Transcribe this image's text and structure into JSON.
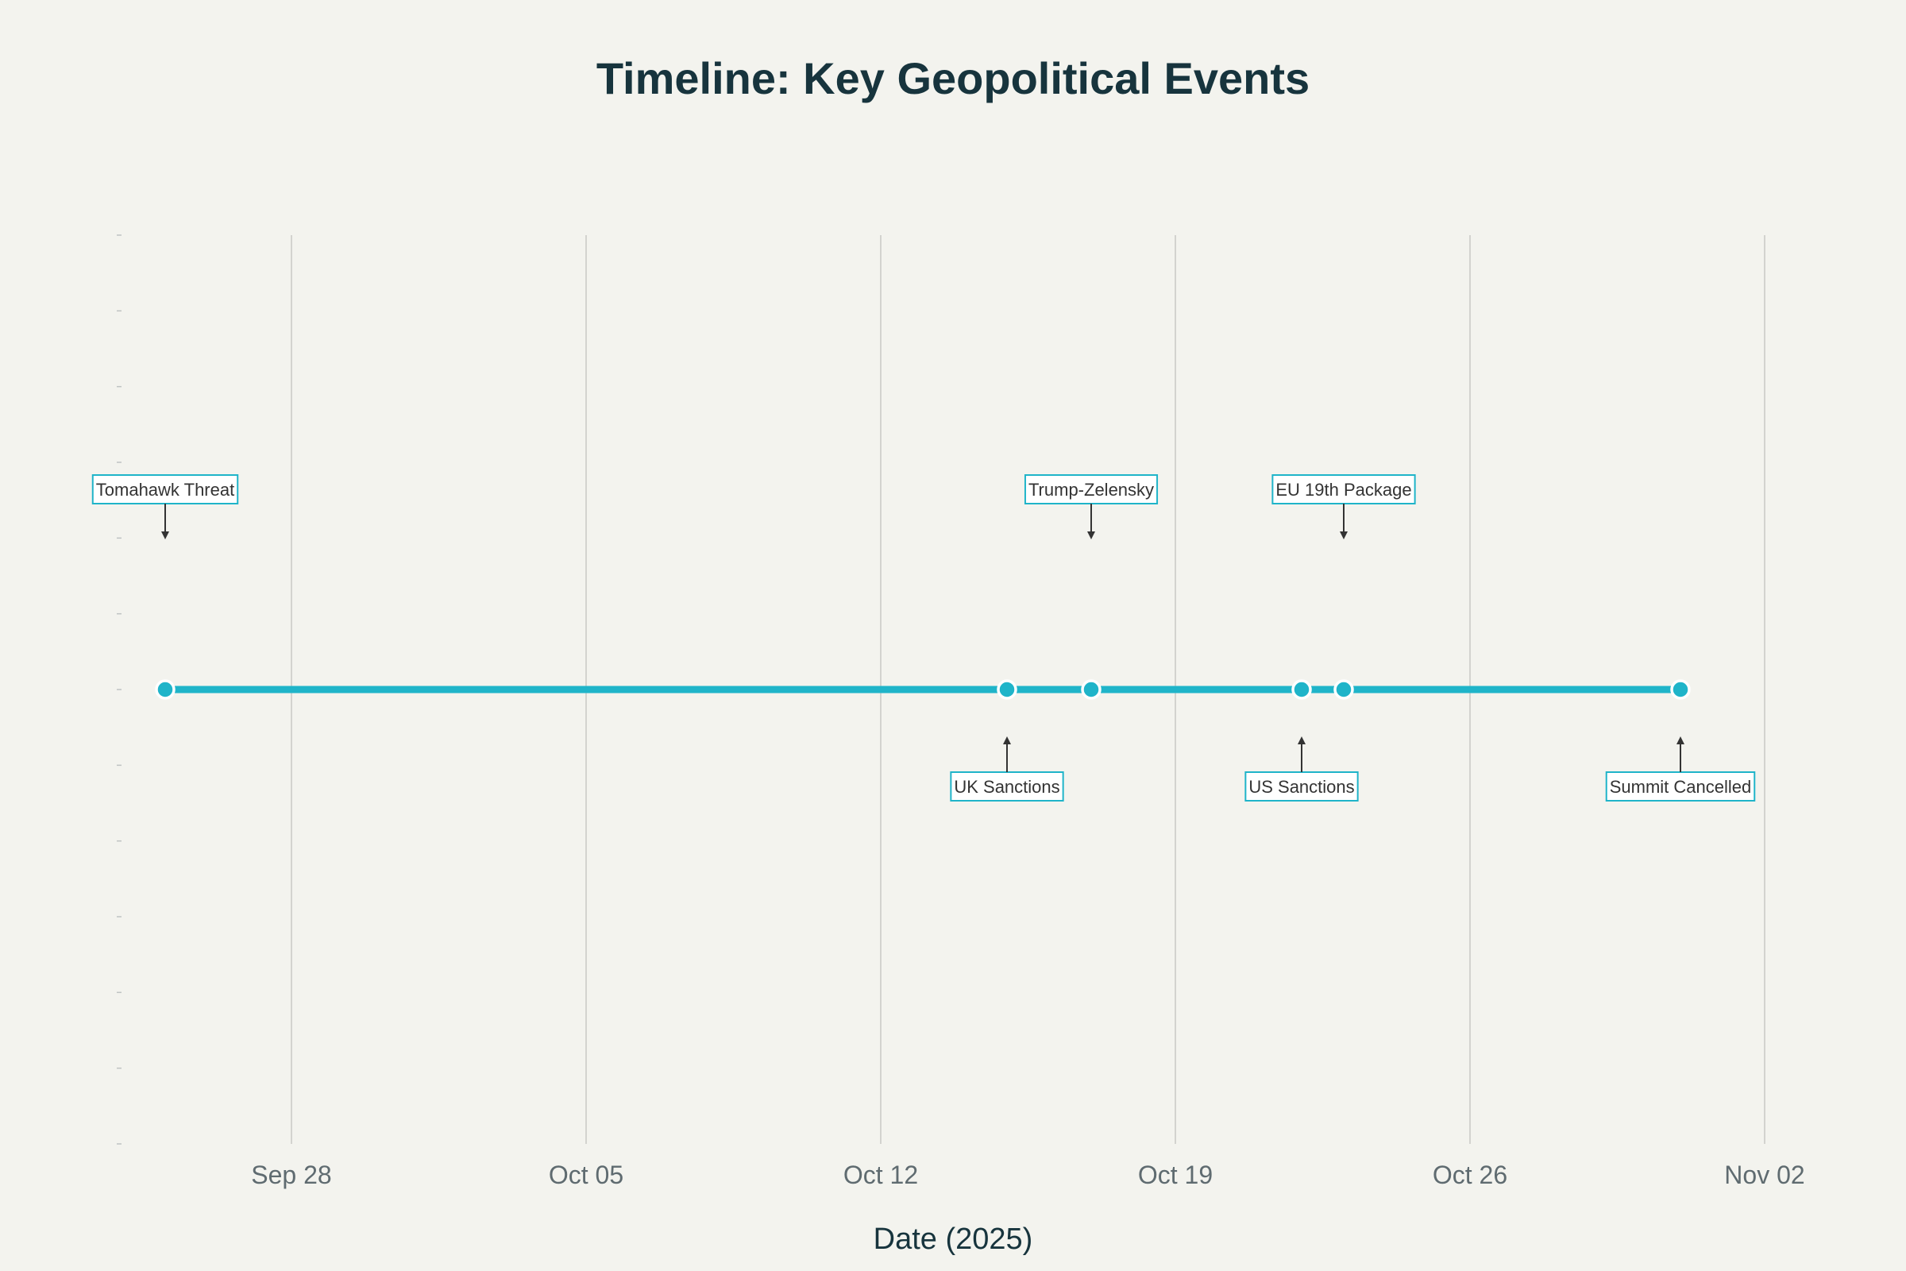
{
  "chart_data": {
    "type": "scatter",
    "title": "Timeline: Key Geopolitical Events",
    "xlabel": "Date (2025)",
    "ylabel": "",
    "x_type": "date",
    "xlim": [
      "2025-09-24",
      "2025-11-02"
    ],
    "ylim": [
      -1.5,
      1.5
    ],
    "grid": {
      "x": true,
      "y": false
    },
    "x_ticks": [
      {
        "date": "2025-09-28",
        "label": "Sep 28"
      },
      {
        "date": "2025-10-05",
        "label": "Oct 05"
      },
      {
        "date": "2025-10-12",
        "label": "Oct 12"
      },
      {
        "date": "2025-10-19",
        "label": "Oct 19"
      },
      {
        "date": "2025-10-26",
        "label": "Oct 26"
      },
      {
        "date": "2025-11-02",
        "label": "Nov 02"
      }
    ],
    "line_color": "#1fb4c9",
    "marker_color": "#1fb4c9",
    "annotation_border_color": "#1fb4c9",
    "events": [
      {
        "date": "2025-09-25",
        "y": 0,
        "label": "Tomahawk Threat",
        "position": "above"
      },
      {
        "date": "2025-10-15",
        "y": 0,
        "label": "UK Sanctions",
        "position": "below"
      },
      {
        "date": "2025-10-17",
        "y": 0,
        "label": "Trump-Zelensky",
        "position": "above"
      },
      {
        "date": "2025-10-22",
        "y": 0,
        "label": "US Sanctions",
        "position": "below"
      },
      {
        "date": "2025-10-23",
        "y": 0,
        "label": "EU 19th Package",
        "position": "above"
      },
      {
        "date": "2025-10-31",
        "y": 0,
        "label": "Summit Cancelled",
        "position": "below"
      }
    ]
  }
}
